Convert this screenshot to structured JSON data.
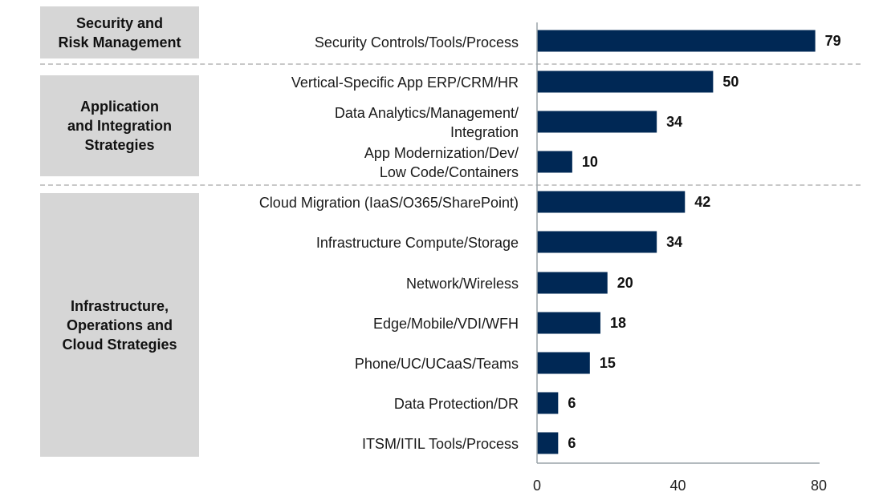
{
  "chart_data": {
    "type": "bar",
    "orientation": "horizontal",
    "title": "",
    "xlabel": "",
    "ylabel": "",
    "xlim": [
      0,
      80
    ],
    "x_ticks": [
      "0",
      "40",
      "80"
    ],
    "grid": false,
    "bar_color": "#002855",
    "groups": [
      {
        "name": "Security and\nRisk Management",
        "categories": [
          "Security Controls/Tools/Process"
        ],
        "values": [
          79
        ]
      },
      {
        "name": "Application\nand Integration\nStrategies",
        "categories": [
          "Vertical-Specific App ERP/CRM/HR",
          "Data Analytics/Management/\nIntegration",
          "App Modernization/Dev/\nLow Code/Containers"
        ],
        "values": [
          50,
          34,
          10
        ]
      },
      {
        "name": "Infrastructure,\nOperations and\nCloud Strategies",
        "categories": [
          "Cloud Migration (IaaS/O365/SharePoint)",
          "Infrastructure Compute/Storage",
          "Network/Wireless",
          "Edge/Mobile/VDI/WFH",
          "Phone/UC/UCaaS/Teams",
          "Data Protection/DR",
          "ITSM/ITIL Tools/Process"
        ],
        "values": [
          42,
          34,
          20,
          18,
          15,
          6,
          6
        ]
      }
    ],
    "categories": [
      "Security Controls/Tools/Process",
      "Vertical-Specific App ERP/CRM/HR",
      "Data Analytics/Management/\nIntegration",
      "App Modernization/Dev/\nLow Code/Containers",
      "Cloud Migration (IaaS/O365/SharePoint)",
      "Infrastructure Compute/Storage",
      "Network/Wireless",
      "Edge/Mobile/VDI/WFH",
      "Phone/UC/UCaaS/Teams",
      "Data Protection/DR",
      "ITSM/ITIL Tools/Process"
    ],
    "values": [
      79,
      50,
      34,
      10,
      42,
      34,
      20,
      18,
      15,
      6,
      6
    ],
    "value_labels": [
      "79",
      "50",
      "34",
      "10",
      "42",
      "34",
      "20",
      "18",
      "15",
      "6",
      "6"
    ]
  }
}
